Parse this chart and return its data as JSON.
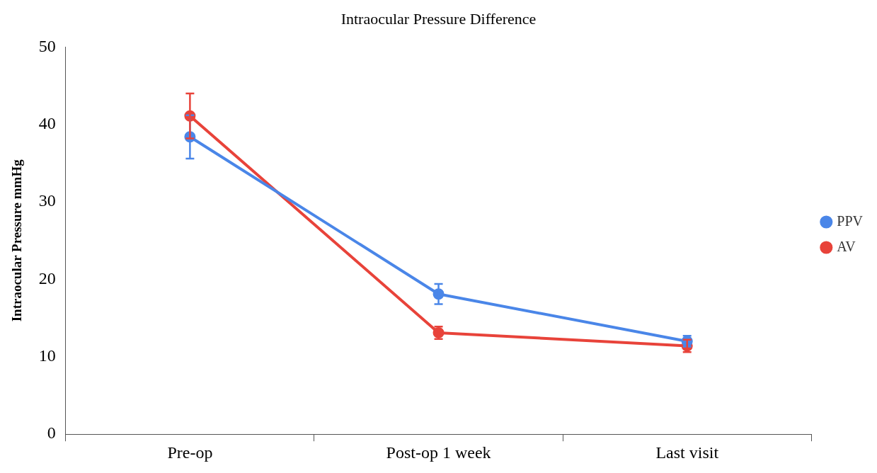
{
  "chart_data": {
    "type": "line",
    "title": "Intraocular Pressure Difference",
    "ylabel": "Intraocular Pressure mmHg",
    "categories": [
      "Pre-op",
      "Post-op 1 week",
      "Last visit"
    ],
    "series": [
      {
        "name": "PPV",
        "color": "#4a86e8",
        "values": [
          38.4,
          18.1,
          12.0
        ],
        "errors": [
          2.8,
          1.3,
          0.7
        ]
      },
      {
        "name": "AV",
        "color": "#e8433a",
        "values": [
          41.1,
          13.1,
          11.4
        ],
        "errors": [
          2.9,
          0.8,
          0.8
        ]
      }
    ],
    "ylim": [
      0,
      50
    ],
    "yticks": [
      0,
      10,
      20,
      30,
      40,
      50
    ],
    "grid": false,
    "legend": "right",
    "marker": "circle",
    "line_style": "solid"
  }
}
